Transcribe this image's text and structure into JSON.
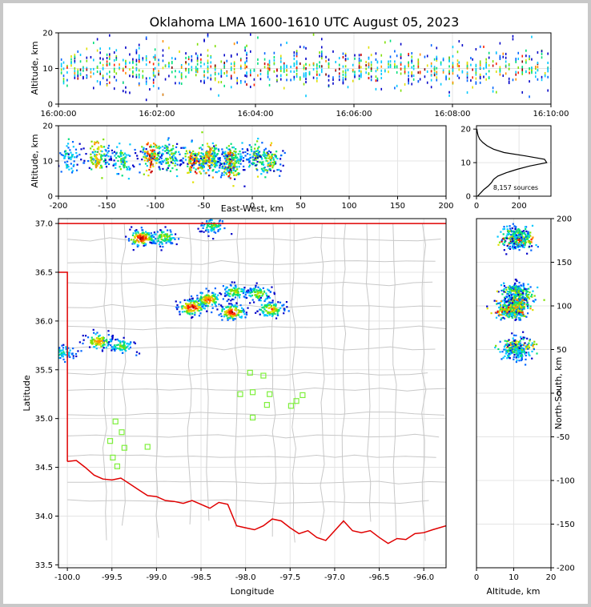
{
  "chart_data": {
    "type": "scatter",
    "title": "Oklahoma LMA 1600-1610 UTC August 05, 2023",
    "source_count_label": "8,157 sources",
    "colors": {
      "density": [
        "#0000c8",
        "#0064ff",
        "#00c8ff",
        "#00e07a",
        "#7ee000",
        "#e0e000",
        "#ff9000",
        "#ff2000",
        "#c80000",
        "#800000"
      ],
      "state_border": "#e00000",
      "county_lines": "#c8c8c8",
      "stations": "#7ef03c",
      "histogram": "#000000"
    },
    "panels": {
      "time_height": {
        "xlabel": "",
        "ylabel": "Altitude, km",
        "x_ticks": [
          "16:00:00",
          "16:02:00",
          "16:04:00",
          "16:06:00",
          "16:08:00",
          "16:10:00"
        ],
        "x_range_min": [
          0,
          10
        ],
        "ylim": [
          0,
          20
        ],
        "y_ticks": [
          0,
          10,
          20
        ]
      },
      "ew_height": {
        "xlabel": "East-West, km",
        "ylabel": "Altitude, km",
        "xlim": [
          -200,
          200
        ],
        "ylim": [
          0,
          20
        ],
        "x_ticks": [
          -200,
          -150,
          -100,
          -50,
          0,
          50,
          100,
          150,
          200
        ],
        "y_ticks": [
          0,
          10,
          20
        ]
      },
      "alt_hist": {
        "xlim": [
          0,
          350
        ],
        "ylim": [
          0,
          21
        ],
        "x_ticks": [
          0,
          200
        ],
        "y_ticks": [
          0,
          10,
          20
        ],
        "profile": [
          [
            5,
            0
          ],
          [
            20,
            1
          ],
          [
            35,
            2
          ],
          [
            55,
            3
          ],
          [
            70,
            4
          ],
          [
            80,
            5
          ],
          [
            100,
            6
          ],
          [
            140,
            7
          ],
          [
            190,
            8
          ],
          [
            250,
            9
          ],
          [
            330,
            10
          ],
          [
            320,
            11
          ],
          [
            230,
            12
          ],
          [
            130,
            13
          ],
          [
            80,
            14
          ],
          [
            50,
            15
          ],
          [
            30,
            16
          ],
          [
            15,
            17
          ],
          [
            8,
            18
          ],
          [
            4,
            19
          ],
          [
            2,
            20
          ]
        ]
      },
      "plan": {
        "xlabel": "Longitude",
        "ylabel": "Latitude",
        "xlim": [
          -100.1,
          -95.75
        ],
        "ylim": [
          33.47,
          37.05
        ],
        "x_ticks": [
          "-100.0",
          "-99.5",
          "-99.0",
          "-98.5",
          "-98.0",
          "-97.5",
          "-97.0",
          "-96.5",
          "-96.0"
        ],
        "y_ticks": [
          "33.5",
          "34.0",
          "34.5",
          "35.0",
          "35.5",
          "36.0",
          "36.5",
          "37.0"
        ],
        "stations": [
          [
            -97.95,
            35.47
          ],
          [
            -97.8,
            35.44
          ],
          [
            -98.06,
            35.25
          ],
          [
            -97.92,
            35.27
          ],
          [
            -97.73,
            35.25
          ],
          [
            -97.36,
            35.24
          ],
          [
            -97.43,
            35.18
          ],
          [
            -97.49,
            35.13
          ],
          [
            -97.76,
            35.14
          ],
          [
            -97.92,
            35.01
          ],
          [
            -99.46,
            34.97
          ],
          [
            -99.39,
            34.86
          ],
          [
            -99.52,
            34.77
          ],
          [
            -99.36,
            34.7
          ],
          [
            -99.1,
            34.71
          ],
          [
            -99.49,
            34.6
          ],
          [
            -99.44,
            34.51
          ]
        ]
      },
      "ns_height": {
        "xlabel": "Altitude, km",
        "ylabel": "North-South, km",
        "xlim": [
          0,
          20
        ],
        "ylim": [
          -200,
          200
        ],
        "x_ticks": [
          0,
          10,
          20
        ],
        "y_ticks": [
          -200,
          -150,
          -100,
          -50,
          0,
          50,
          100,
          150,
          200
        ]
      }
    },
    "storm_cells": [
      {
        "lon": -99.17,
        "lat": 36.85,
        "ew": -105,
        "ns": 175,
        "alt": 11,
        "intensity": 1.0
      },
      {
        "lon": -98.92,
        "lat": 36.86,
        "ew": -85,
        "ns": 176,
        "alt": 11,
        "intensity": 0.55
      },
      {
        "lon": -98.37,
        "lat": 36.98,
        "ew": -40,
        "ns": 185,
        "alt": 10,
        "intensity": 0.4
      },
      {
        "lon": -98.6,
        "lat": 36.14,
        "ew": -60,
        "ns": 97,
        "alt": 10,
        "intensity": 1.0
      },
      {
        "lon": -98.42,
        "lat": 36.22,
        "ew": -45,
        "ns": 105,
        "alt": 11,
        "intensity": 0.8
      },
      {
        "lon": -98.15,
        "lat": 36.09,
        "ew": -22,
        "ns": 94,
        "alt": 9,
        "intensity": 0.95
      },
      {
        "lon": -98.12,
        "lat": 36.3,
        "ew": -20,
        "ns": 118,
        "alt": 11,
        "intensity": 0.5
      },
      {
        "lon": -97.85,
        "lat": 36.28,
        "ew": 5,
        "ns": 115,
        "alt": 11,
        "intensity": 0.55
      },
      {
        "lon": -97.71,
        "lat": 36.12,
        "ew": 18,
        "ns": 98,
        "alt": 10,
        "intensity": 0.7
      },
      {
        "lon": -99.65,
        "lat": 35.79,
        "ew": -160,
        "ns": 55,
        "alt": 11,
        "intensity": 0.75
      },
      {
        "lon": -99.4,
        "lat": 35.74,
        "ew": -135,
        "ns": 50,
        "alt": 10,
        "intensity": 0.45
      },
      {
        "lon": -100.05,
        "lat": 35.68,
        "ew": -190,
        "ns": 45,
        "alt": 11,
        "intensity": 0.3
      }
    ]
  }
}
